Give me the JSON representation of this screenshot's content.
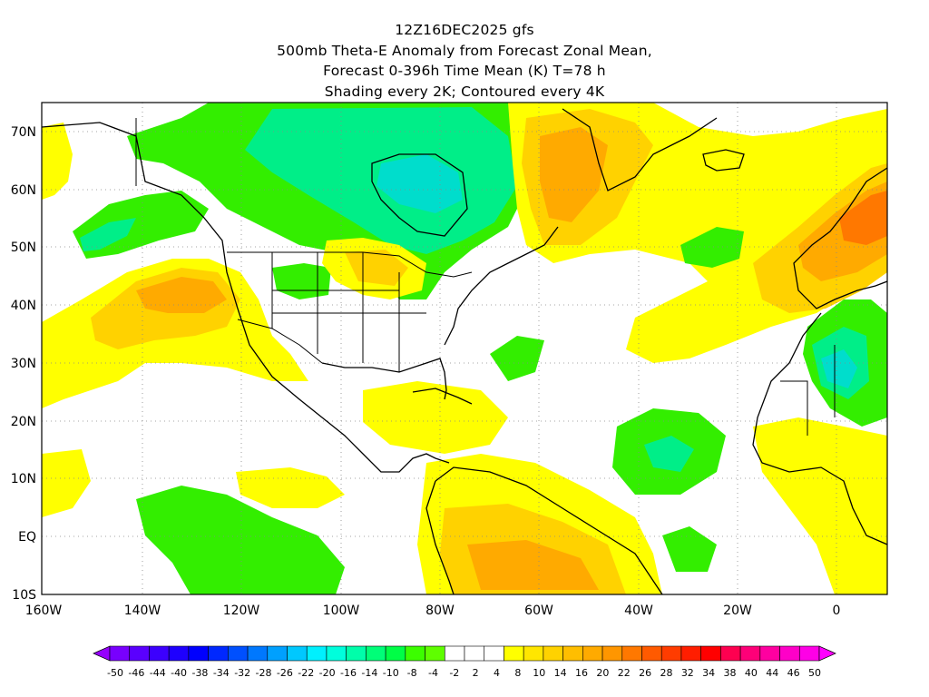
{
  "title": {
    "line1": "12Z16DEC2025 gfs",
    "line2": "500mb Theta-E Anomaly from Forecast Zonal Mean,",
    "line3": "Forecast 0-396h Time Mean (K) T=78 h",
    "line4": "Shading every 2K; Contoured every 4K"
  },
  "latitude_labels": [
    "70N",
    "60N",
    "50N",
    "40N",
    "30N",
    "20N",
    "10N",
    "EQ",
    "10S"
  ],
  "longitude_labels": [
    "160W",
    "140W",
    "120W",
    "100W",
    "80W",
    "60W",
    "40W",
    "20W",
    "0"
  ],
  "colorbar": {
    "labels": [
      "-50",
      "-46",
      "-44",
      "-40",
      "-38",
      "-34",
      "-32",
      "-28",
      "-26",
      "-22",
      "-20",
      "-16",
      "-14",
      "-10",
      "-8",
      "-4",
      "-2",
      "2",
      "4",
      "8",
      "10",
      "14",
      "16",
      "20",
      "22",
      "26",
      "28",
      "32",
      "34",
      "38",
      "40",
      "44",
      "46",
      "50"
    ],
    "colors": [
      "#9600fe",
      "#7800fe",
      "#5a00fe",
      "#3c00fe",
      "#1e00fe",
      "#0000fe",
      "#0028fe",
      "#0050fe",
      "#0078fe",
      "#00a0fe",
      "#00c8fe",
      "#00f0fe",
      "#00fedc",
      "#00feaa",
      "#00fe78",
      "#00fe46",
      "#3cfe00",
      "#5ffe00",
      "#ffffff",
      "#ffffff",
      "#ffffff",
      "#ffff00",
      "#ffe600",
      "#ffd200",
      "#ffbe00",
      "#ffaa00",
      "#ff9600",
      "#ff7800",
      "#ff5a00",
      "#ff3c00",
      "#ff1e00",
      "#ff0000",
      "#fe0050",
      "#fe0078",
      "#fe00a0",
      "#fe00c8",
      "#fe00e6",
      "#ff00ff"
    ]
  },
  "colors": {
    "cold_green": "#33ee00",
    "cold_mint": "#00ee88",
    "cold_cyan": "#00ddcc",
    "warm_yellow": "#ffff00",
    "warm_gold": "#ffd200",
    "warm_orange": "#ffaa00",
    "warm_dark_orange": "#ff7800",
    "coastline": "#000000"
  }
}
